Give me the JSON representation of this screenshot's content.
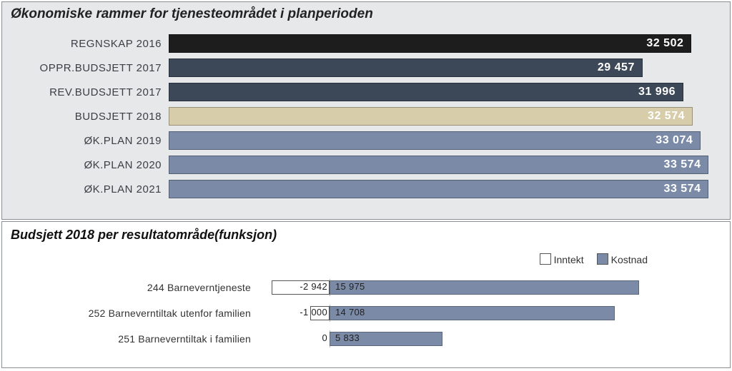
{
  "panel1": {
    "title": "Økonomiske rammer for tjenesteområdet i planperioden",
    "panel_bg": "#e6e8ea",
    "border_color": "#8a8f94",
    "title_fontsize": 19,
    "title_fontweight": "bold",
    "title_style": "italic",
    "chart": {
      "type": "bar-horizontal",
      "max_value": 33574,
      "track_ratio": 0.985,
      "label_fontsize": 15,
      "value_fontsize": 16,
      "value_color_light": "#ffffff",
      "rows": [
        {
          "label": "REGNSKAP 2016",
          "value": 32502,
          "value_text": "32 502",
          "bar_color": "#1d1d1d",
          "text_color": "#ffffff"
        },
        {
          "label": "OPPR.BUDSJETT 2017",
          "value": 29457,
          "value_text": "29 457",
          "bar_color": "#3c4758",
          "text_color": "#ffffff"
        },
        {
          "label": "REV.BUDSJETT 2017",
          "value": 31996,
          "value_text": "31 996",
          "bar_color": "#3c4758",
          "text_color": "#ffffff"
        },
        {
          "label": "BUDSJETT 2018",
          "value": 32574,
          "value_text": "32 574",
          "bar_color": "#d8cdab",
          "text_color": "#ffffff"
        },
        {
          "label": "ØK.PLAN 2019",
          "value": 33074,
          "value_text": "33 074",
          "bar_color": "#7a8aa7",
          "text_color": "#ffffff"
        },
        {
          "label": "ØK.PLAN 2020",
          "value": 33574,
          "value_text": "33 574",
          "bar_color": "#7a8aa7",
          "text_color": "#ffffff"
        },
        {
          "label": "ØK.PLAN 2021",
          "value": 33574,
          "value_text": "33 574",
          "bar_color": "#7a8aa7",
          "text_color": "#ffffff"
        }
      ]
    }
  },
  "panel2": {
    "title": "Budsjett 2018 per resultatområde(funksjon)",
    "panel_bg": "#ffffff",
    "border_color": "#8a8f94",
    "title_fontsize": 18,
    "legend": {
      "items": [
        {
          "swatch": "#ffffff",
          "border": "#555555",
          "label": "Inntekt"
        },
        {
          "swatch": "#7a8aa7",
          "border": "#555555",
          "label": "Kostnad"
        }
      ]
    },
    "chart": {
      "type": "diverging-bar-horizontal",
      "neg_scale_max": 4000,
      "pos_scale_max": 20000,
      "neg_bar_color": "#ffffff",
      "pos_bar_color": "#7a8aa7",
      "neg_border_color": "#555555",
      "label_fontsize": 14,
      "value_fontsize": 13,
      "rows": [
        {
          "label": "244 Barneverntjeneste",
          "neg": -2942,
          "neg_text": "-2 942",
          "pos": 15975,
          "pos_text": "15 975"
        },
        {
          "label": "252 Barneverntiltak utenfor familien",
          "neg": -1000,
          "neg_text": "-1 000",
          "pos": 14708,
          "pos_text": "14 708"
        },
        {
          "label": "251 Barneverntiltak i familien",
          "neg": 0,
          "neg_text": "0",
          "pos": 5833,
          "pos_text": "5 833"
        }
      ]
    }
  }
}
